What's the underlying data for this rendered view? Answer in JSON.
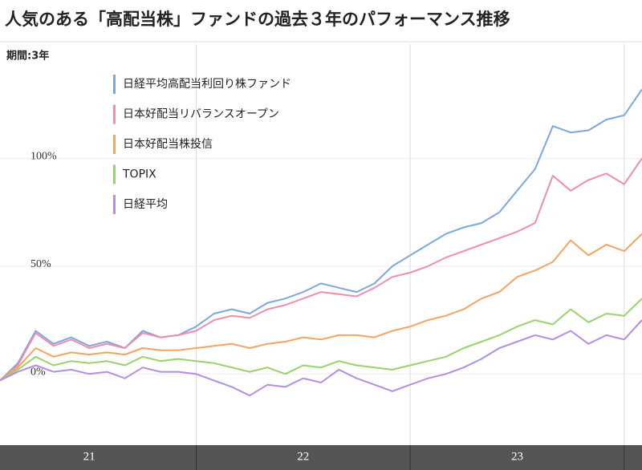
{
  "chart_data": {
    "type": "line",
    "title": "人気のある「高配当株」ファンドの過去３年のパフォーマンス推移",
    "subtitle": "期間:3年",
    "categories": [
      null,
      null,
      null,
      null,
      null,
      "21",
      null,
      null,
      null,
      null,
      null,
      null,
      null,
      null,
      null,
      null,
      null,
      "22",
      null,
      null,
      null,
      null,
      null,
      null,
      null,
      null,
      null,
      null,
      null,
      "23",
      null,
      null,
      null,
      null,
      null,
      null,
      null
    ],
    "ylim": [
      -33,
      153
    ],
    "yticks": [
      {
        "value": 0,
        "label": "0%"
      },
      {
        "value": 50,
        "label": "50%"
      },
      {
        "value": 100,
        "label": "100%"
      }
    ],
    "grid": true,
    "series": [
      {
        "name": "日経平均高配当利回り株ファンド",
        "color": "#7ea6e0",
        "values": [
          -3,
          5,
          20,
          14,
          17,
          13,
          15,
          12,
          20,
          17,
          18,
          22,
          28,
          30,
          28,
          33,
          35,
          38,
          42,
          40,
          38,
          42,
          50,
          55,
          60,
          65,
          68,
          70,
          75,
          85,
          95,
          115,
          112,
          113,
          118,
          120,
          132
        ]
      },
      {
        "name": "日本好配当リバランスオープン",
        "color": "#f08cb0",
        "values": [
          -3,
          4,
          19,
          13,
          16,
          12,
          14,
          12,
          19,
          17,
          18,
          20,
          25,
          27,
          26,
          30,
          32,
          35,
          38,
          37,
          36,
          40,
          45,
          47,
          50,
          54,
          57,
          60,
          63,
          66,
          70,
          92,
          85,
          90,
          93,
          88,
          100
        ]
      },
      {
        "name": "日本好配当株投信",
        "color": "#f4a460",
        "values": [
          -3,
          3,
          12,
          8,
          10,
          9,
          10,
          9,
          12,
          11,
          11,
          12,
          13,
          14,
          12,
          14,
          15,
          17,
          16,
          18,
          18,
          17,
          20,
          22,
          25,
          27,
          30,
          35,
          38,
          45,
          48,
          52,
          62,
          55,
          60,
          57,
          65
        ]
      },
      {
        "name": "TOPIX",
        "color": "#98d36b",
        "values": [
          -3,
          2,
          8,
          4,
          6,
          5,
          6,
          4,
          8,
          6,
          7,
          6,
          5,
          3,
          1,
          3,
          0,
          4,
          3,
          6,
          4,
          3,
          2,
          4,
          6,
          8,
          12,
          15,
          18,
          22,
          25,
          23,
          30,
          24,
          28,
          27,
          35
        ]
      },
      {
        "name": "日経平均",
        "color": "#b48ee0",
        "values": [
          -3,
          1,
          4,
          1,
          2,
          0,
          1,
          -2,
          3,
          1,
          1,
          0,
          -3,
          -6,
          -10,
          -5,
          -6,
          -2,
          -4,
          2,
          -2,
          -5,
          -8,
          -5,
          -2,
          0,
          3,
          7,
          12,
          15,
          18,
          16,
          20,
          14,
          18,
          16,
          25
        ]
      }
    ]
  }
}
